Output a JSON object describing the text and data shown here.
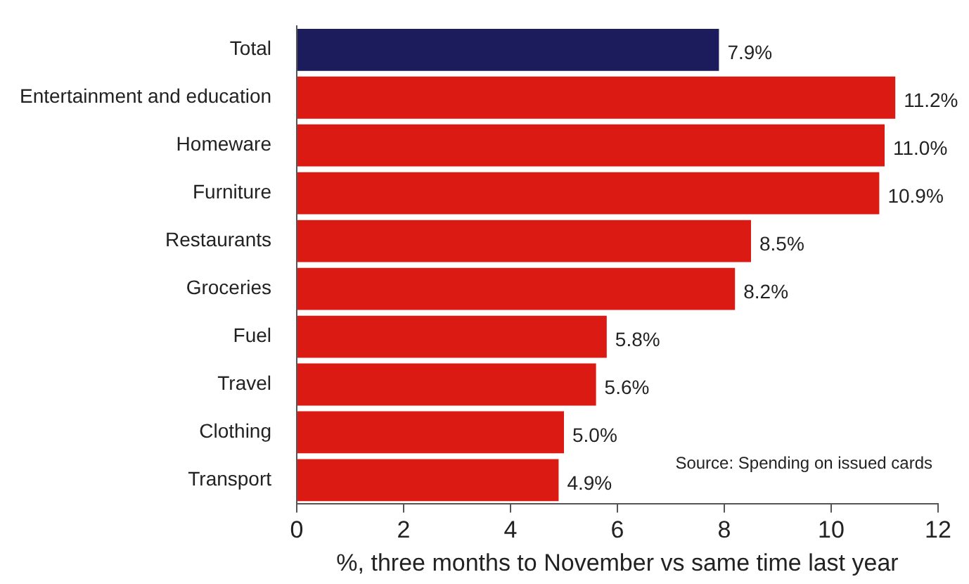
{
  "chart_data": {
    "type": "bar",
    "orientation": "horizontal",
    "categories": [
      "Total",
      "Entertainment and education",
      "Homeware",
      "Furniture",
      "Restaurants",
      "Groceries",
      "Fuel",
      "Travel",
      "Clothing",
      "Transport"
    ],
    "values": [
      7.9,
      11.2,
      11.0,
      10.9,
      8.5,
      8.2,
      5.8,
      5.6,
      5.0,
      4.9
    ],
    "colors": [
      "#1c1c5c",
      "#dc1a14",
      "#dc1a14",
      "#dc1a14",
      "#dc1a14",
      "#dc1a14",
      "#dc1a14",
      "#dc1a14",
      "#dc1a14",
      "#dc1a14"
    ],
    "value_labels": [
      "7.9%",
      "11.2%",
      "11.0%",
      "10.9%",
      "8.5%",
      "8.2%",
      "5.8%",
      "5.6%",
      "5.0%",
      "4.9%"
    ],
    "xlim": [
      0,
      12
    ],
    "xticks": [
      0,
      2,
      4,
      6,
      8,
      10,
      12
    ],
    "xlabel": "%, three months to November vs same time last year",
    "annotations": [
      "Source: Spending on issued cards"
    ],
    "legend": false
  }
}
